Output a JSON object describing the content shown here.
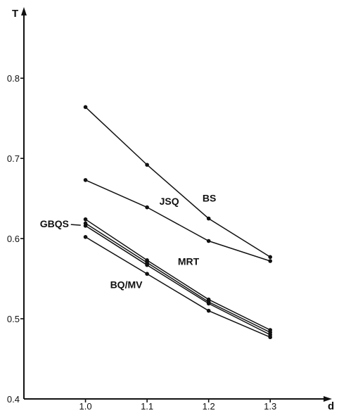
{
  "chart_data": {
    "type": "line",
    "title": "",
    "xlabel": "d",
    "ylabel": "T",
    "x": [
      1.0,
      1.1,
      1.2,
      1.3
    ],
    "x_ticks": [
      "1.0",
      "1.1",
      "1.2",
      "1.3"
    ],
    "y_ticks": [
      "0.4",
      "0.5",
      "0.6",
      "0.7",
      "0.8"
    ],
    "xlim": [
      0.9,
      1.39
    ],
    "ylim": [
      0.4,
      0.88
    ],
    "grid": false,
    "legend": "none",
    "series": [
      {
        "name": "BS",
        "values": [
          0.764,
          0.692,
          0.625,
          0.577
        ]
      },
      {
        "name": "JSQ",
        "values": [
          0.673,
          0.639,
          0.597,
          0.572
        ]
      },
      {
        "name": "GBQS",
        "values": [
          0.624,
          0.573,
          0.524,
          0.486
        ]
      },
      {
        "name": "",
        "values": [
          0.619,
          0.57,
          0.521,
          0.483
        ]
      },
      {
        "name": "MRT",
        "values": [
          0.616,
          0.567,
          0.519,
          0.48
        ]
      },
      {
        "name": "BQ/MV",
        "values": [
          0.602,
          0.556,
          0.51,
          0.477
        ]
      }
    ],
    "annotations": [
      {
        "text": "BS",
        "x": 1.19,
        "y": 0.646
      },
      {
        "text": "JSQ",
        "x": 1.12,
        "y": 0.642
      },
      {
        "text": "GBQS",
        "x": 0.926,
        "y": 0.614
      },
      {
        "text": "MRT",
        "x": 1.15,
        "y": 0.567
      },
      {
        "text": "BQ/MV",
        "x": 1.04,
        "y": 0.538
      }
    ]
  }
}
